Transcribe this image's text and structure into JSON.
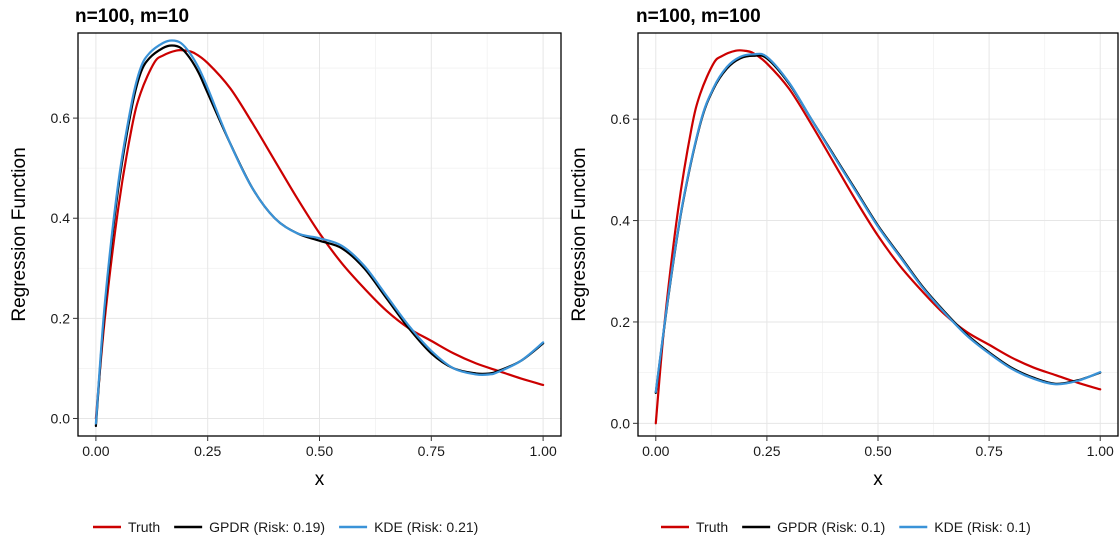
{
  "chart_data": [
    {
      "type": "line",
      "title": "n=100, m=10",
      "xlabel": "x",
      "ylabel": "Regression Function",
      "xlim": [
        -0.04,
        1.04
      ],
      "ylim": [
        -0.035,
        0.77
      ],
      "x_ticks": [
        "0.00",
        "0.25",
        "0.50",
        "0.75",
        "1.00"
      ],
      "x_tick_values": [
        0,
        0.25,
        0.5,
        0.75,
        1.0
      ],
      "y_ticks": [
        "0.0",
        "0.2",
        "0.4",
        "0.6"
      ],
      "y_tick_values": [
        0,
        0.2,
        0.4,
        0.6
      ],
      "grid": true,
      "legend_position": "bottom",
      "series": [
        {
          "name": "Truth",
          "color": "#cc0000",
          "x": [
            0,
            0.02,
            0.05,
            0.08,
            0.1,
            0.13,
            0.15,
            0.18,
            0.2,
            0.22,
            0.25,
            0.3,
            0.35,
            0.4,
            0.45,
            0.5,
            0.55,
            0.6,
            0.65,
            0.7,
            0.75,
            0.8,
            0.85,
            0.9,
            0.95,
            1.0
          ],
          "y": [
            0.0,
            0.2,
            0.42,
            0.58,
            0.65,
            0.71,
            0.725,
            0.735,
            0.735,
            0.73,
            0.71,
            0.66,
            0.59,
            0.515,
            0.44,
            0.37,
            0.31,
            0.26,
            0.215,
            0.18,
            0.155,
            0.13,
            0.11,
            0.095,
            0.08,
            0.067
          ]
        },
        {
          "name": "GPDR (Risk: 0.19)",
          "color": "#000000",
          "x": [
            0,
            0.02,
            0.05,
            0.08,
            0.1,
            0.12,
            0.15,
            0.17,
            0.19,
            0.21,
            0.23,
            0.25,
            0.3,
            0.35,
            0.4,
            0.45,
            0.5,
            0.55,
            0.6,
            0.65,
            0.7,
            0.75,
            0.8,
            0.85,
            0.88,
            0.9,
            0.95,
            1.0
          ],
          "y": [
            -0.015,
            0.22,
            0.46,
            0.62,
            0.69,
            0.72,
            0.74,
            0.745,
            0.74,
            0.72,
            0.69,
            0.65,
            0.55,
            0.46,
            0.4,
            0.37,
            0.355,
            0.34,
            0.3,
            0.24,
            0.18,
            0.13,
            0.1,
            0.09,
            0.09,
            0.095,
            0.115,
            0.15
          ]
        },
        {
          "name": "KDE (Risk: 0.21)",
          "color": "#3a93d8",
          "x": [
            0,
            0.02,
            0.05,
            0.08,
            0.1,
            0.12,
            0.15,
            0.17,
            0.19,
            0.21,
            0.23,
            0.25,
            0.3,
            0.35,
            0.4,
            0.45,
            0.5,
            0.55,
            0.6,
            0.65,
            0.7,
            0.75,
            0.8,
            0.85,
            0.88,
            0.9,
            0.95,
            1.0
          ],
          "y": [
            -0.01,
            0.23,
            0.47,
            0.63,
            0.7,
            0.73,
            0.75,
            0.755,
            0.75,
            0.73,
            0.7,
            0.66,
            0.55,
            0.46,
            0.4,
            0.37,
            0.36,
            0.345,
            0.305,
            0.245,
            0.185,
            0.135,
            0.1,
            0.088,
            0.088,
            0.093,
            0.115,
            0.152
          ]
        }
      ]
    },
    {
      "type": "line",
      "title": "n=100, m=100",
      "xlabel": "x",
      "ylabel": "Regression Function",
      "xlim": [
        -0.04,
        1.04
      ],
      "ylim": [
        -0.025,
        0.77
      ],
      "x_ticks": [
        "0.00",
        "0.25",
        "0.50",
        "0.75",
        "1.00"
      ],
      "x_tick_values": [
        0,
        0.25,
        0.5,
        0.75,
        1.0
      ],
      "y_ticks": [
        "0.0",
        "0.2",
        "0.4",
        "0.6"
      ],
      "y_tick_values": [
        0,
        0.2,
        0.4,
        0.6
      ],
      "grid": true,
      "legend_position": "bottom",
      "series": [
        {
          "name": "Truth",
          "color": "#cc0000",
          "x": [
            0,
            0.02,
            0.05,
            0.08,
            0.1,
            0.13,
            0.15,
            0.18,
            0.2,
            0.22,
            0.25,
            0.3,
            0.35,
            0.4,
            0.45,
            0.5,
            0.55,
            0.6,
            0.65,
            0.7,
            0.75,
            0.8,
            0.85,
            0.9,
            0.95,
            1.0
          ],
          "y": [
            0.0,
            0.2,
            0.42,
            0.58,
            0.65,
            0.71,
            0.725,
            0.735,
            0.735,
            0.73,
            0.71,
            0.66,
            0.59,
            0.515,
            0.44,
            0.37,
            0.31,
            0.26,
            0.215,
            0.18,
            0.155,
            0.13,
            0.11,
            0.095,
            0.08,
            0.067
          ]
        },
        {
          "name": "GPDR (Risk: 0.1)",
          "color": "#000000",
          "x": [
            0,
            0.03,
            0.06,
            0.1,
            0.13,
            0.16,
            0.19,
            0.22,
            0.25,
            0.3,
            0.35,
            0.4,
            0.45,
            0.5,
            0.55,
            0.6,
            0.65,
            0.7,
            0.75,
            0.8,
            0.85,
            0.9,
            0.95,
            1.0
          ],
          "y": [
            0.06,
            0.26,
            0.43,
            0.59,
            0.66,
            0.7,
            0.72,
            0.725,
            0.72,
            0.67,
            0.6,
            0.53,
            0.46,
            0.39,
            0.33,
            0.27,
            0.22,
            0.175,
            0.14,
            0.11,
            0.09,
            0.078,
            0.085,
            0.1
          ]
        },
        {
          "name": "KDE (Risk: 0.1)",
          "color": "#3a93d8",
          "x": [
            0,
            0.03,
            0.06,
            0.1,
            0.13,
            0.16,
            0.19,
            0.22,
            0.25,
            0.3,
            0.35,
            0.4,
            0.45,
            0.5,
            0.55,
            0.6,
            0.65,
            0.7,
            0.75,
            0.8,
            0.85,
            0.9,
            0.95,
            1.0
          ],
          "y": [
            0.062,
            0.262,
            0.432,
            0.592,
            0.662,
            0.703,
            0.723,
            0.728,
            0.723,
            0.672,
            0.6,
            0.528,
            0.458,
            0.388,
            0.328,
            0.268,
            0.218,
            0.173,
            0.138,
            0.108,
            0.088,
            0.077,
            0.084,
            0.101
          ]
        }
      ]
    }
  ]
}
